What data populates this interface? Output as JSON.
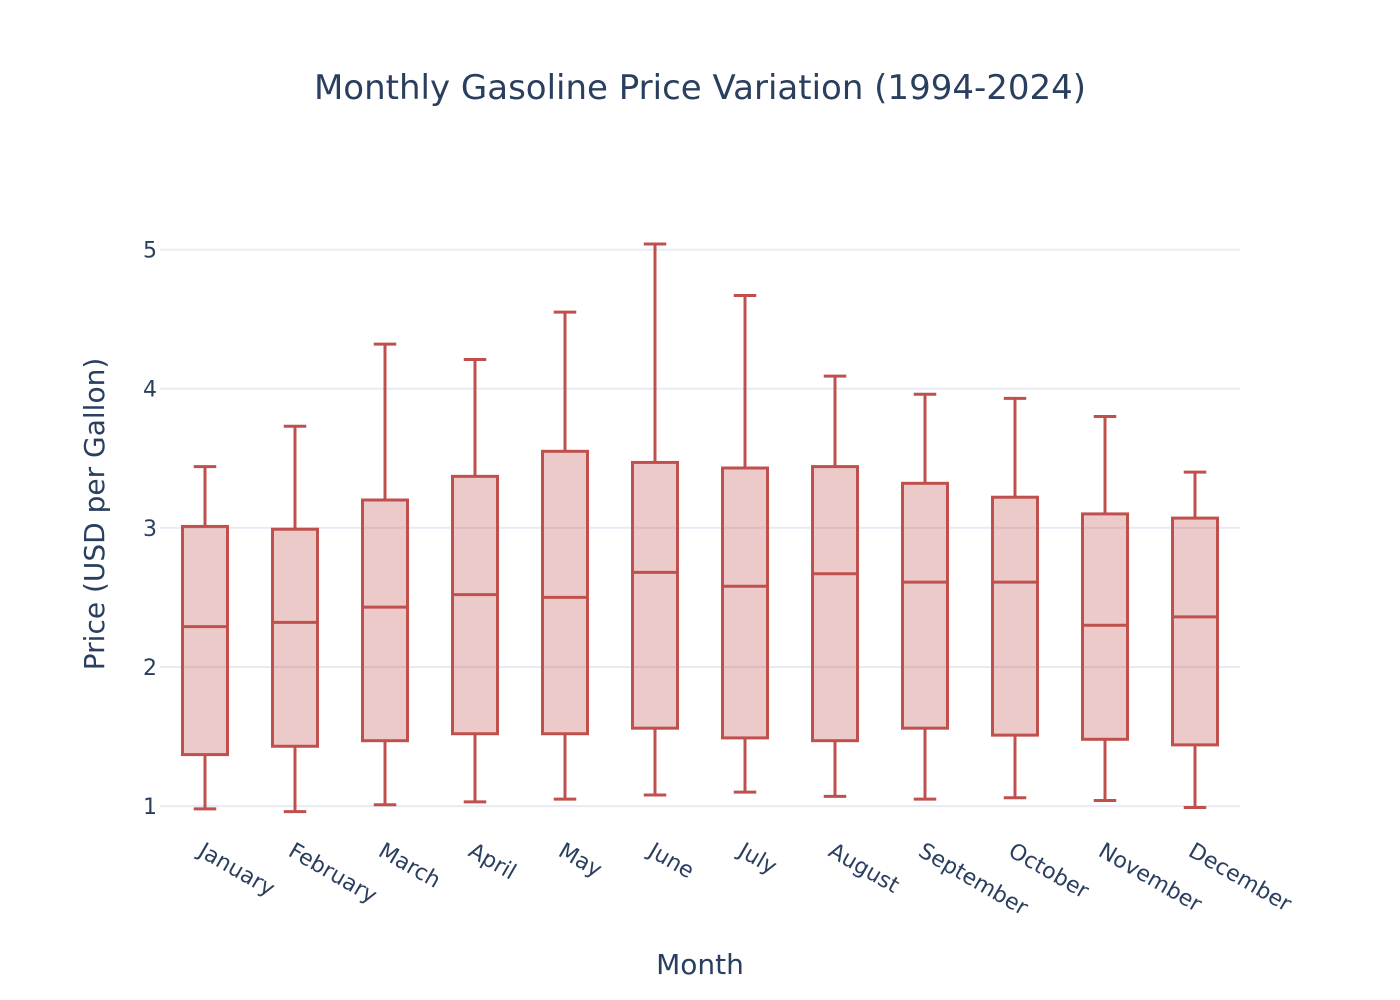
{
  "chart_data": {
    "type": "box",
    "title": "Monthly Gasoline Price Variation (1994-2024)",
    "xlabel": "Month",
    "ylabel": "Price (USD per Gallon)",
    "ylim": [
      0.9,
      5.5
    ],
    "yticks": [
      1,
      2,
      3,
      4,
      5
    ],
    "grid": true,
    "colors": {
      "box_line": "#c0504d",
      "box_fill": "rgba(192,80,77,0.3)",
      "text": "#2a3f5f",
      "grid": "#e8ebf3"
    },
    "categories": [
      "January",
      "February",
      "March",
      "April",
      "May",
      "June",
      "July",
      "August",
      "September",
      "October",
      "November",
      "December"
    ],
    "series": [
      {
        "name": "",
        "min": 0.98,
        "q1": 1.37,
        "median": 2.29,
        "q3": 3.01,
        "max": 3.44
      },
      {
        "name": "",
        "min": 0.96,
        "q1": 1.43,
        "median": 2.32,
        "q3": 2.99,
        "max": 3.73
      },
      {
        "name": "",
        "min": 1.01,
        "q1": 1.47,
        "median": 2.43,
        "q3": 3.2,
        "max": 4.32
      },
      {
        "name": "",
        "min": 1.03,
        "q1": 1.52,
        "median": 2.52,
        "q3": 3.37,
        "max": 4.21
      },
      {
        "name": "",
        "min": 1.05,
        "q1": 1.52,
        "median": 2.5,
        "q3": 3.55,
        "max": 4.55
      },
      {
        "name": "",
        "min": 1.08,
        "q1": 1.56,
        "median": 2.68,
        "q3": 3.47,
        "max": 5.04
      },
      {
        "name": "",
        "min": 1.1,
        "q1": 1.49,
        "median": 2.58,
        "q3": 3.43,
        "max": 4.67
      },
      {
        "name": "",
        "min": 1.07,
        "q1": 1.47,
        "median": 2.67,
        "q3": 3.44,
        "max": 4.09
      },
      {
        "name": "",
        "min": 1.05,
        "q1": 1.56,
        "median": 2.61,
        "q3": 3.32,
        "max": 3.96
      },
      {
        "name": "",
        "min": 1.06,
        "q1": 1.51,
        "median": 2.61,
        "q3": 3.22,
        "max": 3.93
      },
      {
        "name": "",
        "min": 1.04,
        "q1": 1.48,
        "median": 2.3,
        "q3": 3.1,
        "max": 3.8
      },
      {
        "name": "",
        "min": 0.99,
        "q1": 1.44,
        "median": 2.36,
        "q3": 3.07,
        "max": 3.4
      }
    ]
  }
}
